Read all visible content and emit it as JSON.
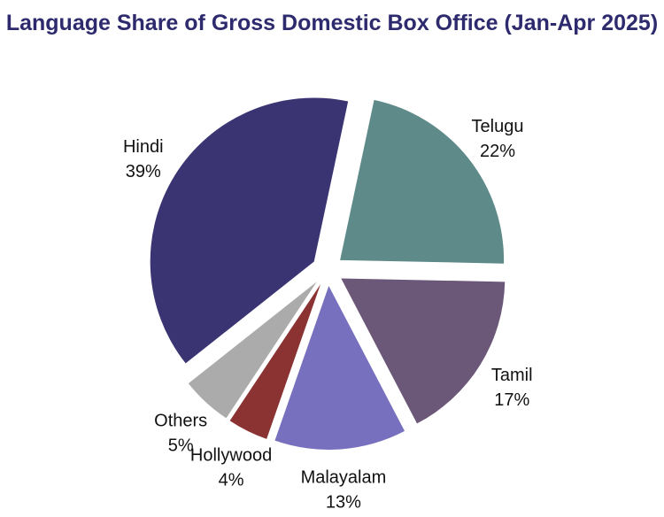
{
  "chart_data": {
    "type": "pie",
    "title": "Language Share of Gross Domestic Box Office (Jan-Apr 2025)",
    "slices": [
      {
        "name": "Telugu",
        "label": "22%",
        "value": 22,
        "color": "#5e8a8a"
      },
      {
        "name": "Tamil",
        "label": "17%",
        "value": 17,
        "color": "#6b5778"
      },
      {
        "name": "Malayalam",
        "label": "13%",
        "value": 13,
        "color": "#7670be"
      },
      {
        "name": "Hollywood",
        "label": "4%",
        "value": 4,
        "color": "#8b3232"
      },
      {
        "name": "Others",
        "label": "5%",
        "value": 5,
        "color": "#aaabaa"
      },
      {
        "name": "Hindi",
        "label": "39%",
        "value": 39,
        "color": "#3a3473"
      }
    ]
  }
}
